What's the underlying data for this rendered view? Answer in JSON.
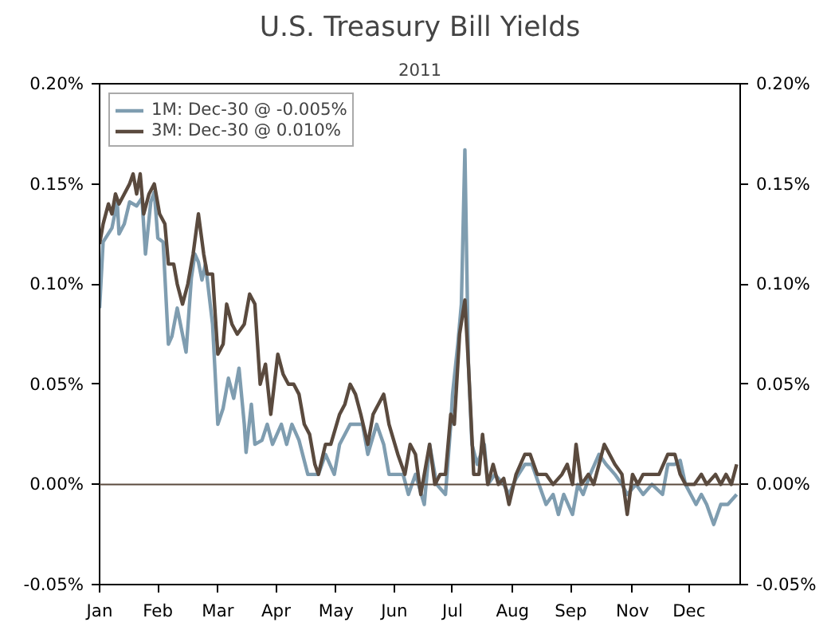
{
  "chart_data": {
    "type": "line",
    "title": "U.S. Treasury Bill Yields",
    "subtitle": "2011",
    "xlim": [
      "2011-01-03",
      "2012-01-01"
    ],
    "xticks": [
      {
        "value": "2011-01-03",
        "label": "Jan"
      },
      {
        "value": "2011-02-05",
        "label": "Feb"
      },
      {
        "value": "2011-03-11",
        "label": "Mar"
      },
      {
        "value": "2011-04-13",
        "label": "Apr"
      },
      {
        "value": "2011-05-17",
        "label": "May"
      },
      {
        "value": "2011-06-19",
        "label": "Jun"
      },
      {
        "value": "2011-07-22",
        "label": "Jul"
      },
      {
        "value": "2011-08-25",
        "label": "Aug"
      },
      {
        "value": "2011-09-27",
        "label": "Sep"
      },
      {
        "value": "2011-11-01",
        "label": "Nov"
      },
      {
        "value": "2011-12-03",
        "label": "Dec"
      }
    ],
    "ylim": [
      -0.05,
      0.2
    ],
    "yticks": [
      {
        "value": -0.05,
        "label": "-0.05%"
      },
      {
        "value": 0,
        "label": "0.00%"
      },
      {
        "value": 0.05,
        "label": "0.05%"
      },
      {
        "value": 0.1,
        "label": "0.10%"
      },
      {
        "value": 0.15,
        "label": "0.15%"
      },
      {
        "value": 0.2,
        "label": "0.20%"
      }
    ],
    "y2lim": [
      -0.05,
      0.2
    ],
    "y2ticks": [
      {
        "value": -0.05,
        "label": "-0.05%"
      },
      {
        "value": 0,
        "label": "0.00%"
      },
      {
        "value": 0.05,
        "label": "0.05%"
      },
      {
        "value": 0.1,
        "label": "0.10%"
      },
      {
        "value": 0.15,
        "label": "0.15%"
      },
      {
        "value": 0.2,
        "label": "0.20%"
      }
    ],
    "ref_lines": [
      {
        "axis": "y",
        "value": 0,
        "color": "#5a4a3e"
      }
    ],
    "grid": false,
    "legend": "top left",
    "line_style": "solid",
    "series": [
      {
        "name": "1M: Dec-30 @ -0.005%",
        "color": "#7f9db0",
        "x": [
          "2011-01-03",
          "2011-01-05",
          "2011-01-10",
          "2011-01-13",
          "2011-01-14",
          "2011-01-17",
          "2011-01-20",
          "2011-01-24",
          "2011-01-27",
          "2011-01-29",
          "2011-02-01",
          "2011-02-03",
          "2011-02-05",
          "2011-02-08",
          "2011-02-11",
          "2011-02-13",
          "2011-02-16",
          "2011-02-21",
          "2011-02-24",
          "2011-02-26",
          "2011-02-28",
          "2011-03-02",
          "2011-03-04",
          "2011-03-08",
          "2011-03-11",
          "2011-03-14",
          "2011-03-17",
          "2011-03-20",
          "2011-03-23",
          "2011-03-26",
          "2011-03-27",
          "2011-03-30",
          "2011-04-01",
          "2011-04-05",
          "2011-04-08",
          "2011-04-11",
          "2011-04-16",
          "2011-04-19",
          "2011-04-22",
          "2011-04-26",
          "2011-05-01",
          "2011-05-07",
          "2011-05-11",
          "2011-05-16",
          "2011-05-19",
          "2011-05-25",
          "2011-06-01",
          "2011-06-04",
          "2011-06-09",
          "2011-06-13",
          "2011-06-16",
          "2011-06-24",
          "2011-06-27",
          "2011-07-01",
          "2011-07-06",
          "2011-07-09",
          "2011-07-13",
          "2011-07-18",
          "2011-07-21",
          "2011-07-22",
          "2011-07-25",
          "2011-07-27",
          "2011-07-29",
          "2011-07-31",
          "2011-08-02",
          "2011-08-05",
          "2011-08-09",
          "2011-08-11",
          "2011-08-15",
          "2011-08-20",
          "2011-08-23",
          "2011-08-27",
          "2011-09-01",
          "2011-09-05",
          "2011-09-09",
          "2011-09-13",
          "2011-09-17",
          "2011-09-20",
          "2011-09-23",
          "2011-09-28",
          "2011-10-01",
          "2011-10-04",
          "2011-10-08",
          "2011-10-13",
          "2011-10-17",
          "2011-10-22",
          "2011-10-26",
          "2011-10-29",
          "2011-11-03",
          "2011-11-07",
          "2011-11-12",
          "2011-11-18",
          "2011-11-21",
          "2011-11-25",
          "2011-11-28",
          "2011-12-01",
          "2011-12-04",
          "2011-12-07",
          "2011-12-10",
          "2011-12-13",
          "2011-12-17",
          "2011-12-21",
          "2011-12-25",
          "2011-12-30"
        ],
        "values": [
          0.088,
          0.121,
          0.128,
          0.141,
          0.125,
          0.13,
          0.141,
          0.139,
          0.143,
          0.115,
          0.141,
          0.146,
          0.123,
          0.121,
          0.07,
          0.074,
          0.088,
          0.066,
          0.103,
          0.115,
          0.111,
          0.102,
          0.11,
          0.08,
          0.03,
          0.038,
          0.053,
          0.043,
          0.058,
          0.03,
          0.016,
          0.04,
          0.02,
          0.022,
          0.03,
          0.02,
          0.03,
          0.02,
          0.03,
          0.022,
          0.005,
          0.005,
          0.015,
          0.005,
          0.02,
          0.03,
          0.03,
          0.015,
          0.03,
          0.02,
          0.005,
          0.005,
          -0.005,
          0.005,
          -0.01,
          0.02,
          0.0,
          -0.005,
          0.03,
          0.045,
          0.07,
          0.09,
          0.167,
          0.06,
          0.02,
          0.01,
          0.02,
          0.0,
          0.005,
          0.0,
          -0.005,
          0.003,
          0.01,
          0.01,
          0.0,
          -0.01,
          -0.005,
          -0.015,
          -0.005,
          -0.015,
          0.0,
          -0.005,
          0.005,
          0.015,
          0.01,
          0.005,
          0.0,
          -0.005,
          0.0,
          -0.005,
          0.0,
          -0.005,
          0.01,
          0.01,
          0.012,
          0.0,
          -0.005,
          -0.01,
          -0.005,
          -0.01,
          -0.02,
          -0.01,
          -0.01,
          -0.005
        ]
      },
      {
        "name": "3M: Dec-30 @ 0.010%",
        "color": "#5a4a3e",
        "x": [
          "2011-01-03",
          "2011-01-05",
          "2011-01-08",
          "2011-01-10",
          "2011-01-12",
          "2011-01-14",
          "2011-01-17",
          "2011-01-20",
          "2011-01-22",
          "2011-01-24",
          "2011-01-26",
          "2011-01-28",
          "2011-01-31",
          "2011-02-03",
          "2011-02-06",
          "2011-02-09",
          "2011-02-11",
          "2011-02-14",
          "2011-02-16",
          "2011-02-19",
          "2011-02-22",
          "2011-02-25",
          "2011-02-28",
          "2011-03-03",
          "2011-03-05",
          "2011-03-08",
          "2011-03-11",
          "2011-03-14",
          "2011-03-16",
          "2011-03-19",
          "2011-03-22",
          "2011-03-26",
          "2011-03-29",
          "2011-04-01",
          "2011-04-04",
          "2011-04-07",
          "2011-04-10",
          "2011-04-14",
          "2011-04-17",
          "2011-04-20",
          "2011-04-23",
          "2011-04-26",
          "2011-04-29",
          "2011-05-02",
          "2011-05-05",
          "2011-05-07",
          "2011-05-11",
          "2011-05-14",
          "2011-05-19",
          "2011-05-22",
          "2011-05-25",
          "2011-05-28",
          "2011-05-31",
          "2011-06-04",
          "2011-06-07",
          "2011-06-10",
          "2011-06-13",
          "2011-06-16",
          "2011-06-21",
          "2011-06-25",
          "2011-06-28",
          "2011-07-01",
          "2011-07-04",
          "2011-07-09",
          "2011-07-12",
          "2011-07-15",
          "2011-07-18",
          "2011-07-21",
          "2011-07-23",
          "2011-07-26",
          "2011-07-29",
          "2011-07-31",
          "2011-08-03",
          "2011-08-06",
          "2011-08-08",
          "2011-08-11",
          "2011-08-14",
          "2011-08-17",
          "2011-08-20",
          "2011-08-23",
          "2011-08-27",
          "2011-09-01",
          "2011-09-04",
          "2011-09-08",
          "2011-09-13",
          "2011-09-17",
          "2011-09-22",
          "2011-09-25",
          "2011-09-28",
          "2011-09-30",
          "2011-10-03",
          "2011-10-07",
          "2011-10-10",
          "2011-10-13",
          "2011-10-16",
          "2011-10-19",
          "2011-10-22",
          "2011-10-26",
          "2011-10-29",
          "2011-11-01",
          "2011-11-04",
          "2011-11-07",
          "2011-11-12",
          "2011-11-16",
          "2011-11-21",
          "2011-11-25",
          "2011-11-28",
          "2011-12-01",
          "2011-12-06",
          "2011-12-10",
          "2011-12-13",
          "2011-12-18",
          "2011-12-21",
          "2011-12-24",
          "2011-12-27",
          "2011-12-30"
        ],
        "values": [
          0.12,
          0.13,
          0.14,
          0.135,
          0.145,
          0.14,
          0.145,
          0.15,
          0.155,
          0.145,
          0.155,
          0.135,
          0.145,
          0.15,
          0.135,
          0.13,
          0.11,
          0.11,
          0.1,
          0.09,
          0.1,
          0.115,
          0.135,
          0.115,
          0.105,
          0.105,
          0.065,
          0.07,
          0.09,
          0.08,
          0.075,
          0.08,
          0.095,
          0.09,
          0.05,
          0.06,
          0.035,
          0.065,
          0.055,
          0.05,
          0.05,
          0.045,
          0.03,
          0.025,
          0.01,
          0.005,
          0.02,
          0.02,
          0.035,
          0.04,
          0.05,
          0.045,
          0.035,
          0.02,
          0.035,
          0.04,
          0.045,
          0.03,
          0.015,
          0.005,
          0.02,
          0.015,
          -0.005,
          0.02,
          0.0,
          0.005,
          0.005,
          0.035,
          0.03,
          0.075,
          0.092,
          0.06,
          0.005,
          0.005,
          0.025,
          0.0,
          0.01,
          0.0,
          0.003,
          -0.01,
          0.005,
          0.015,
          0.015,
          0.005,
          0.005,
          0.0,
          0.005,
          0.01,
          0.0,
          0.02,
          0.0,
          0.005,
          0.0,
          0.01,
          0.02,
          0.015,
          0.01,
          0.005,
          -0.015,
          0.005,
          0.0,
          0.005,
          0.005,
          0.005,
          0.015,
          0.015,
          0.005,
          0.0,
          0.0,
          0.005,
          0.0,
          0.005,
          0.0,
          0.005,
          0.0,
          0.01
        ]
      }
    ]
  }
}
